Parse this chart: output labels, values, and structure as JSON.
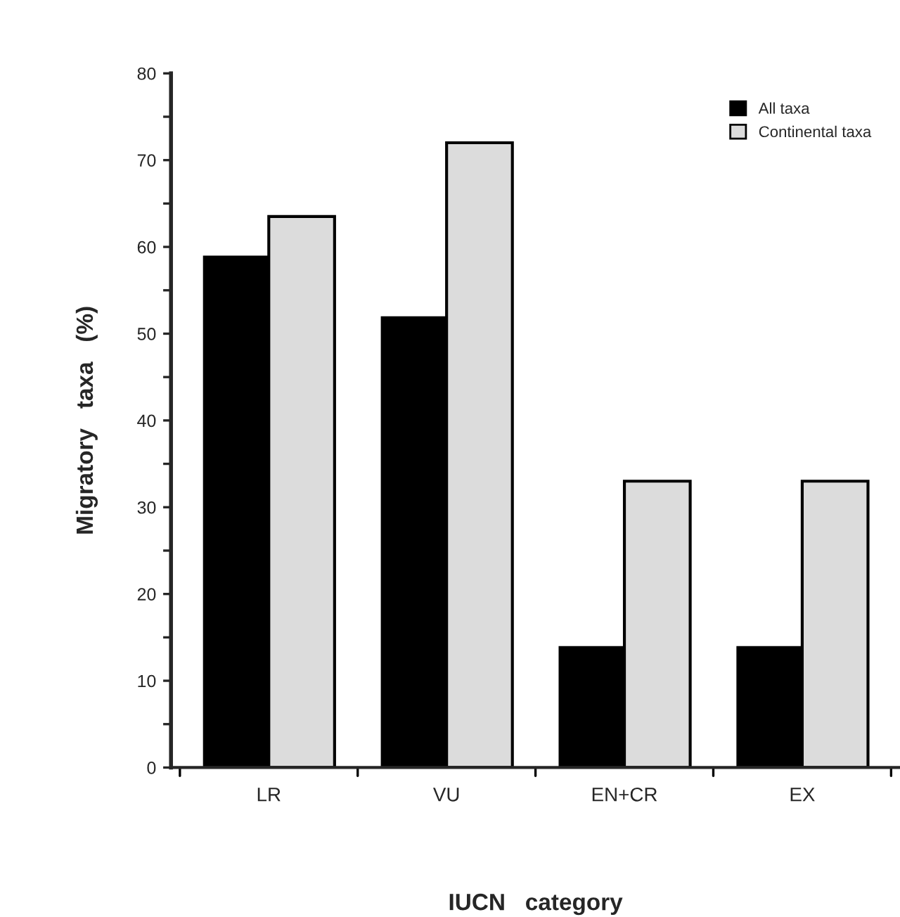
{
  "chart_data": {
    "type": "bar",
    "xlabel": "IUCN   category",
    "ylabel": "Migratory   taxa   (%)",
    "categories": [
      "LR",
      "VU",
      "EN+CR",
      "EX"
    ],
    "series": [
      {
        "name": "All taxa",
        "color": "#000000",
        "values": [
          59,
          52,
          14,
          14
        ]
      },
      {
        "name": "Continental taxa",
        "color": "#dcdcdc",
        "values": [
          63.5,
          72,
          33,
          33
        ]
      }
    ],
    "ylim": [
      0,
      80
    ],
    "yticks": [
      0,
      {
        "value": 5,
        "label": null
      },
      10,
      {
        "value": 15,
        "label": null
      },
      20,
      {
        "value": 25,
        "label": null
      },
      30,
      {
        "value": 35,
        "label": null
      },
      40,
      {
        "value": 45,
        "label": null
      },
      50,
      {
        "value": 55,
        "label": null
      },
      60,
      {
        "value": 65,
        "label": null
      },
      70,
      {
        "value": 75,
        "label": null
      },
      80
    ],
    "legend": "top right",
    "grid": false
  }
}
